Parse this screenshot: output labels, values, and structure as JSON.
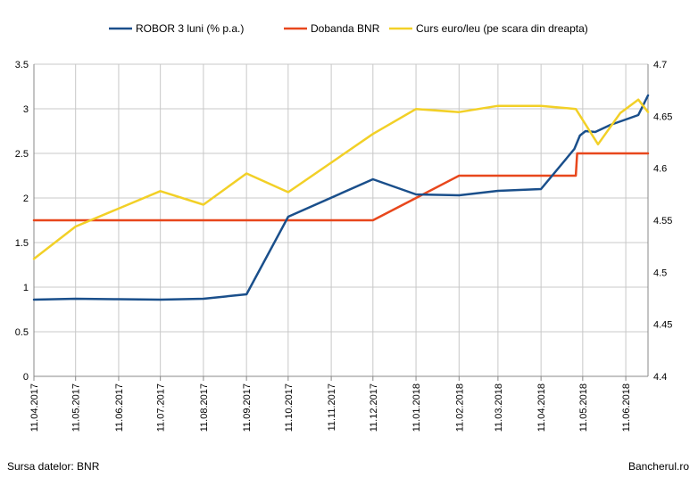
{
  "footer": {
    "source": "Sursa datelor: BNR",
    "brand": "Bancherul.ro"
  },
  "chart_data": {
    "type": "line",
    "title": "",
    "xlabel": "",
    "ylabel": "",
    "x_range": [
      "2017-04-11",
      "2018-06-27"
    ],
    "x_ticks": [
      "11.04.2017",
      "11.05.2017",
      "11.06.2017",
      "11.07.2017",
      "11.08.2017",
      "11.09.2017",
      "11.10.2017",
      "11.11.2017",
      "11.12.2017",
      "11.01.2018",
      "11.02.2018",
      "11.03.2018",
      "11.04.2018",
      "11.05.2018",
      "11.06.2018"
    ],
    "y_left": {
      "range": [
        0,
        3.5
      ],
      "ticks": [
        "0",
        "0.5",
        "1",
        "1.5",
        "2",
        "2.5",
        "3",
        "3.5"
      ]
    },
    "y_right": {
      "range": [
        4.4,
        4.7
      ],
      "ticks": [
        "4.4",
        "4.45",
        "4.5",
        "4.55",
        "4.6",
        "4.65",
        "4.7"
      ]
    },
    "grid": true,
    "legend_position": "top",
    "series": [
      {
        "name": "ROBOR 3 luni (% p.a.)",
        "axis": "left",
        "color": "#1a4f8b",
        "points": [
          [
            "2017-04-11",
            0.86
          ],
          [
            "2017-05-11",
            0.87
          ],
          [
            "2017-06-11",
            0.865
          ],
          [
            "2017-07-11",
            0.86
          ],
          [
            "2017-08-11",
            0.87
          ],
          [
            "2017-09-11",
            0.92
          ],
          [
            "2017-10-11",
            1.79
          ],
          [
            "2017-12-11",
            2.21
          ],
          [
            "2018-01-11",
            2.04
          ],
          [
            "2018-02-11",
            2.03
          ],
          [
            "2018-03-11",
            2.08
          ],
          [
            "2018-04-11",
            2.1
          ],
          [
            "2018-05-05",
            2.55
          ],
          [
            "2018-05-09",
            2.7
          ],
          [
            "2018-05-13",
            2.75
          ],
          [
            "2018-05-20",
            2.74
          ],
          [
            "2018-05-31",
            2.82
          ],
          [
            "2018-06-11",
            2.88
          ],
          [
            "2018-06-20",
            2.93
          ],
          [
            "2018-06-27",
            3.15
          ]
        ]
      },
      {
        "name": "Dobanda BNR",
        "axis": "left",
        "color": "#e8471c",
        "points": [
          [
            "2017-04-11",
            1.75
          ],
          [
            "2017-12-11",
            1.75
          ],
          [
            "2018-01-11",
            2.0
          ],
          [
            "2018-02-11",
            2.25
          ],
          [
            "2018-05-06",
            2.25
          ],
          [
            "2018-05-07",
            2.5
          ],
          [
            "2018-06-27",
            2.5
          ]
        ]
      },
      {
        "name": "Curs euro/leu (pe scara din dreapta)",
        "axis": "right",
        "color": "#f2d027",
        "points": [
          [
            "2017-04-11",
            4.513
          ],
          [
            "2017-05-11",
            4.544
          ],
          [
            "2017-07-11",
            4.578
          ],
          [
            "2017-08-11",
            4.565
          ],
          [
            "2017-09-11",
            4.595
          ],
          [
            "2017-10-11",
            4.577
          ],
          [
            "2017-12-11",
            4.633
          ],
          [
            "2018-01-11",
            4.657
          ],
          [
            "2018-02-11",
            4.654
          ],
          [
            "2018-03-11",
            4.66
          ],
          [
            "2018-04-11",
            4.66
          ],
          [
            "2018-05-06",
            4.657
          ],
          [
            "2018-05-22",
            4.623
          ],
          [
            "2018-06-07",
            4.653
          ],
          [
            "2018-06-20",
            4.666
          ],
          [
            "2018-06-27",
            4.654
          ]
        ]
      }
    ]
  }
}
